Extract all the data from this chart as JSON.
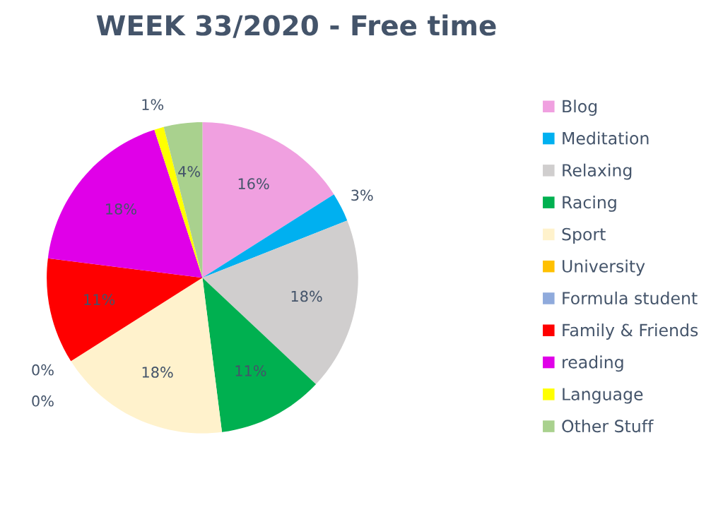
{
  "chart_data": {
    "type": "pie",
    "title": "WEEK 33/2020 - Free time",
    "categories": [
      "Blog",
      "Meditation",
      "Relaxing",
      "Racing",
      "Sport",
      "University",
      "Formula student",
      "Family & Friends",
      "reading",
      "Language",
      "Other Stuff"
    ],
    "values": [
      16,
      3,
      18,
      11,
      18,
      0,
      0,
      11,
      18,
      1,
      4
    ],
    "colors": [
      "#f0a0e0",
      "#00b0f0",
      "#d0cece",
      "#00b050",
      "#fff2cc",
      "#ffc000",
      "#8faadc",
      "#ff0000",
      "#e000e8",
      "#ffff00",
      "#a9d18e"
    ],
    "value_labels": [
      "16%",
      "3%",
      "18%",
      "11%",
      "18%",
      "0%",
      "0%",
      "11%",
      "18%",
      "1%",
      "4%"
    ],
    "legend": "right"
  }
}
